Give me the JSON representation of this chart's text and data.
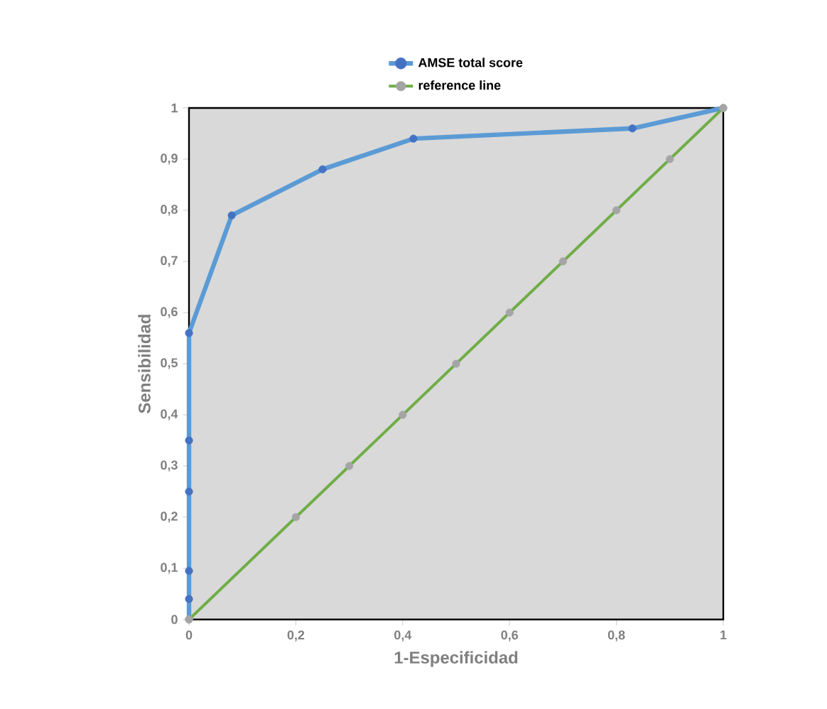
{
  "chart_data": {
    "type": "line",
    "xlabel": "1-Especificidad",
    "ylabel": "Sensibilidad",
    "xlim": [
      0,
      1
    ],
    "ylim": [
      0,
      1
    ],
    "xticks": [
      0,
      {
        "value": 0.2,
        "label": "0,2"
      },
      {
        "value": 0.4,
        "label": "0,4"
      },
      {
        "value": 0.6,
        "label": "0,6"
      },
      {
        "value": 0.8,
        "label": "0,8"
      },
      1
    ],
    "yticks": [
      0,
      {
        "value": 0.1,
        "label": "0,1"
      },
      {
        "value": 0.2,
        "label": "0,2"
      },
      {
        "value": 0.3,
        "label": "0,3"
      },
      {
        "value": 0.4,
        "label": "0,4"
      },
      {
        "value": 0.5,
        "label": "0,5"
      },
      {
        "value": 0.6,
        "label": "0,6"
      },
      {
        "value": 0.7,
        "label": "0,7"
      },
      {
        "value": 0.8,
        "label": "0,8"
      },
      {
        "value": 0.9,
        "label": "0,9"
      },
      1
    ],
    "grid": false,
    "legend": "top",
    "marker": "circle",
    "line_style": "solid",
    "series": [
      {
        "name": "AMSE total score",
        "color": "#5b9bd5",
        "colors": [
          "#a5a5a5",
          "#4472c4",
          "#4472c4",
          "#4472c4",
          "#4472c4",
          "#4472c4",
          "#4472c4",
          "#4472c4",
          "#4472c4",
          "#4472c4",
          "#a5a5a5"
        ],
        "x": [
          0,
          0,
          0,
          0,
          0,
          0,
          0.08,
          0.25,
          0.42,
          0.83,
          1
        ],
        "values": [
          0,
          0.04,
          0.095,
          0.25,
          0.35,
          0.56,
          0.79,
          0.88,
          0.94,
          0.96,
          1
        ]
      },
      {
        "name": "reference line",
        "color": "#70ad47",
        "colors": [
          "#a5a5a5",
          "#a5a5a5",
          "#a5a5a5",
          "#a5a5a5",
          "#a5a5a5",
          "#a5a5a5",
          "#a5a5a5",
          "#a5a5a5",
          "#a5a5a5",
          "#a5a5a5"
        ],
        "x": [
          0,
          0.2,
          0.3,
          0.4,
          0.5,
          0.6,
          0.7,
          0.8,
          0.9,
          1
        ],
        "values": [
          0,
          0.2,
          0.3,
          0.4,
          0.5,
          0.6,
          0.7,
          0.8,
          0.9,
          1
        ]
      }
    ]
  }
}
